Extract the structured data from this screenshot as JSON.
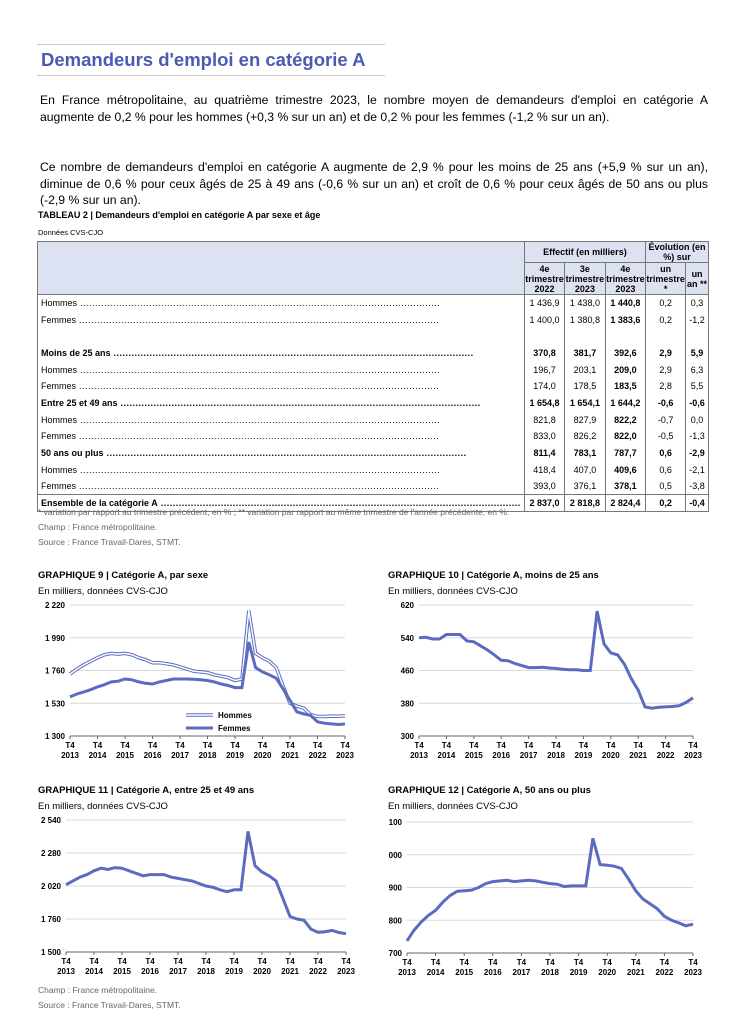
{
  "title": "Demandeurs d'emploi en catégorie A",
  "paragraphs": [
    "En France métropolitaine, au quatrième trimestre 2023, le nombre moyen de demandeurs d'emploi en catégorie A augmente de 0,2 % pour les hommes (+0,3 % sur un an) et de 0,2 % pour les femmes (-1,2 % sur un an).",
    "Ce nombre de demandeurs d'emploi en catégorie A augmente de 2,9 % pour les moins de 25 ans (+5,9 % sur un an), diminue de 0,6 % pour ceux âgés de 25 à 49 ans (-0,6 % sur un an) et croît de 0,6 % pour ceux âgés de 50 ans ou plus (-2,9 % sur un an)."
  ],
  "table": {
    "title": "TABLEAU 2 | Demandeurs d'emploi en catégorie A par sexe et âge",
    "subtitle": "Données CVS-CJO",
    "group_headers": [
      "Effectif (en milliers)",
      "Évolution (en %) sur"
    ],
    "columns": [
      "4e trimestre 2022",
      "3e trimestre 2023",
      "4e trimestre 2023",
      "un trimestre *",
      "un an **"
    ],
    "rows": [
      {
        "label": "Hommes",
        "values": [
          "1 436,9",
          "1 438,0",
          "1 440,8",
          "0,2",
          "0,3"
        ],
        "bold": false
      },
      {
        "label": "Femmes",
        "values": [
          "1 400,0",
          "1 380,8",
          "1 383,6",
          "0,2",
          "-1,2"
        ],
        "bold": false
      },
      {
        "label": "",
        "values": [
          "",
          "",
          "",
          "",
          ""
        ],
        "bold": false
      },
      {
        "label": "Moins de 25 ans",
        "values": [
          "370,8",
          "381,7",
          "392,6",
          "2,9",
          "5,9"
        ],
        "bold": true
      },
      {
        "label": "Hommes",
        "values": [
          "196,7",
          "203,1",
          "209,0",
          "2,9",
          "6,3"
        ],
        "bold": false
      },
      {
        "label": "Femmes",
        "values": [
          "174,0",
          "178,5",
          "183,5",
          "2,8",
          "5,5"
        ],
        "bold": false
      },
      {
        "label": "Entre 25 et 49 ans",
        "values": [
          "1 654,8",
          "1 654,1",
          "1 644,2",
          "-0,6",
          "-0,6"
        ],
        "bold": true
      },
      {
        "label": "Hommes",
        "values": [
          "821,8",
          "827,9",
          "822,2",
          "-0,7",
          "0,0"
        ],
        "bold": false
      },
      {
        "label": "Femmes",
        "values": [
          "833,0",
          "826,2",
          "822,0",
          "-0,5",
          "-1,3"
        ],
        "bold": false
      },
      {
        "label": "50 ans ou plus",
        "values": [
          "811,4",
          "783,1",
          "787,7",
          "0,6",
          "-2,9"
        ],
        "bold": true
      },
      {
        "label": "Hommes",
        "values": [
          "418,4",
          "407,0",
          "409,6",
          "0,6",
          "-2,1"
        ],
        "bold": false
      },
      {
        "label": "Femmes",
        "values": [
          "393,0",
          "376,1",
          "378,1",
          "0,5",
          "-3,8"
        ],
        "bold": false
      }
    ],
    "total": {
      "label": "Ensemble de la catégorie A",
      "values": [
        "2 837,0",
        "2 818,8",
        "2 824,4",
        "0,2",
        "-0,4"
      ]
    },
    "footnote": "* variation par rapport au trimestre précédent, en % ; ** variation par rapport au même trimestre de l'année précédente, en %.",
    "champ": "Champ : France métropolitaine.",
    "source": "Source : France Travail-Dares, STMT."
  },
  "footer": {
    "champ": "Champ : France métropolitaine.",
    "source": "Source : France Travail-Dares, STMT."
  },
  "colors": {
    "title": "#4a5bb5",
    "line": "#5b6bbf",
    "header_bg": "#dde2f2"
  },
  "chart_data": [
    {
      "type": "line",
      "title": "GRAPHIQUE 9 | Catégorie A, par sexe",
      "subtitle": "En milliers, données CVS-CJO",
      "ylim": [
        1300,
        2220
      ],
      "yticks": [
        "1 300",
        "1 530",
        "1 760",
        "1 990",
        "2 220"
      ],
      "ytick_values": [
        1300,
        1530,
        1760,
        1990,
        2220
      ],
      "xticks": [
        [
          "T4",
          "2013"
        ],
        [
          "T4",
          "2014"
        ],
        [
          "T4",
          "2015"
        ],
        [
          "T4",
          "2016"
        ],
        [
          "T4",
          "2017"
        ],
        [
          "T4",
          "2018"
        ],
        [
          "T4",
          "2019"
        ],
        [
          "T4",
          "2020"
        ],
        [
          "T4",
          "2021"
        ],
        [
          "T4",
          "2022"
        ],
        [
          "T4",
          "2023"
        ]
      ],
      "grid": true,
      "legend": "bottom-right",
      "series": [
        {
          "name": "Hommes",
          "style": "double",
          "values": [
            1735,
            1770,
            1800,
            1825,
            1850,
            1870,
            1880,
            1875,
            1880,
            1870,
            1850,
            1835,
            1815,
            1815,
            1808,
            1800,
            1785,
            1770,
            1755,
            1750,
            1745,
            1730,
            1720,
            1710,
            1690,
            1700,
            2180,
            1880,
            1850,
            1825,
            1780,
            1650,
            1530,
            1510,
            1495,
            1450,
            1437,
            1437,
            1440,
            1438,
            1441
          ]
        },
        {
          "name": "Femmes",
          "style": "solid",
          "values": [
            1575,
            1595,
            1610,
            1625,
            1645,
            1660,
            1680,
            1685,
            1700,
            1695,
            1680,
            1670,
            1665,
            1680,
            1690,
            1700,
            1700,
            1700,
            1698,
            1695,
            1690,
            1680,
            1665,
            1655,
            1640,
            1640,
            1960,
            1780,
            1750,
            1730,
            1705,
            1630,
            1550,
            1470,
            1455,
            1445,
            1400,
            1390,
            1385,
            1381,
            1384
          ]
        }
      ]
    },
    {
      "type": "line",
      "title": "GRAPHIQUE 10 | Catégorie A, moins de 25 ans",
      "subtitle": "En milliers, données CVS-CJO",
      "ylim": [
        300,
        620
      ],
      "yticks": [
        "300",
        "380",
        "460",
        "540",
        "620"
      ],
      "ytick_values": [
        300,
        380,
        460,
        540,
        620
      ],
      "xticks": [
        [
          "T4",
          "2013"
        ],
        [
          "T4",
          "2014"
        ],
        [
          "T4",
          "2015"
        ],
        [
          "T4",
          "2016"
        ],
        [
          "T4",
          "2017"
        ],
        [
          "T4",
          "2018"
        ],
        [
          "T4",
          "2019"
        ],
        [
          "T4",
          "2020"
        ],
        [
          "T4",
          "2021"
        ],
        [
          "T4",
          "2022"
        ],
        [
          "T4",
          "2023"
        ]
      ],
      "grid": true,
      "series": [
        {
          "style": "solid",
          "values": [
            540,
            541,
            537,
            537,
            548,
            548,
            548,
            532,
            530,
            520,
            510,
            498,
            485,
            484,
            477,
            472,
            467,
            467,
            468,
            466,
            465,
            463,
            462,
            462,
            460,
            460,
            605,
            525,
            503,
            498,
            475,
            440,
            412,
            371,
            368,
            370,
            371,
            372,
            374,
            382,
            393
          ]
        }
      ]
    },
    {
      "type": "line",
      "title": "GRAPHIQUE 11 | Catégorie A, entre 25 et 49 ans",
      "subtitle": "En milliers, données CVS-CJO",
      "ylim": [
        1500,
        2540
      ],
      "yticks": [
        "1 500",
        "1 760",
        "2 020",
        "2 280",
        "2 540"
      ],
      "ytick_values": [
        1500,
        1760,
        2020,
        2280,
        2540
      ],
      "xticks": [
        [
          "T4",
          "2013"
        ],
        [
          "T4",
          "2014"
        ],
        [
          "T4",
          "2015"
        ],
        [
          "T4",
          "2016"
        ],
        [
          "T4",
          "2017"
        ],
        [
          "T4",
          "2018"
        ],
        [
          "T4",
          "2019"
        ],
        [
          "T4",
          "2020"
        ],
        [
          "T4",
          "2021"
        ],
        [
          "T4",
          "2022"
        ],
        [
          "T4",
          "2023"
        ]
      ],
      "grid": true,
      "series": [
        {
          "style": "solid",
          "values": [
            2030,
            2060,
            2090,
            2110,
            2140,
            2160,
            2150,
            2165,
            2160,
            2140,
            2120,
            2100,
            2110,
            2110,
            2110,
            2090,
            2080,
            2070,
            2060,
            2040,
            2020,
            2010,
            1990,
            1975,
            1990,
            1990,
            2450,
            2180,
            2130,
            2100,
            2060,
            1920,
            1780,
            1760,
            1750,
            1680,
            1655,
            1660,
            1670,
            1654,
            1644
          ]
        }
      ]
    },
    {
      "type": "line",
      "title": "GRAPHIQUE 12 | Catégorie A, 50 ans ou plus",
      "subtitle": "En milliers, données CVS-CJO",
      "ylim": [
        700,
        1100
      ],
      "yticks": [
        "700",
        "800",
        "900",
        "1 000",
        "1 100"
      ],
      "ytick_values": [
        700,
        800,
        900,
        1000,
        1100
      ],
      "xticks": [
        [
          "T4",
          "2013"
        ],
        [
          "T4",
          "2014"
        ],
        [
          "T4",
          "2015"
        ],
        [
          "T4",
          "2016"
        ],
        [
          "T4",
          "2017"
        ],
        [
          "T4",
          "2018"
        ],
        [
          "T4",
          "2019"
        ],
        [
          "T4",
          "2020"
        ],
        [
          "T4",
          "2021"
        ],
        [
          "T4",
          "2022"
        ],
        [
          "T4",
          "2023"
        ]
      ],
      "grid": true,
      "series": [
        {
          "style": "solid",
          "values": [
            737,
            770,
            795,
            815,
            830,
            855,
            875,
            888,
            890,
            892,
            900,
            912,
            918,
            920,
            922,
            918,
            920,
            922,
            920,
            916,
            912,
            910,
            903,
            905,
            905,
            905,
            1050,
            970,
            968,
            965,
            958,
            925,
            890,
            865,
            850,
            835,
            812,
            800,
            792,
            783,
            788
          ]
        }
      ]
    }
  ]
}
